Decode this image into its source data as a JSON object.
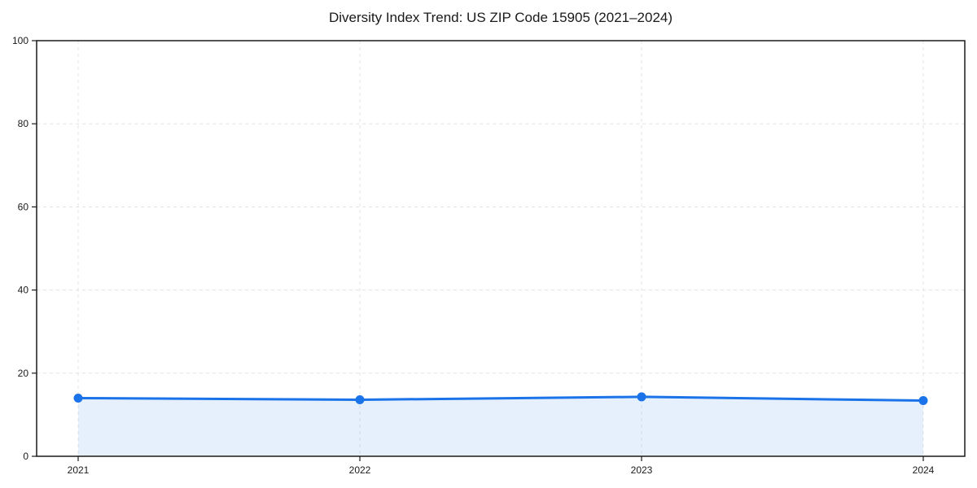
{
  "chart_data": {
    "type": "area",
    "title": "Diversity Index Trend: US ZIP Code 15905 (2021–2024)",
    "categories": [
      "2021",
      "2022",
      "2023",
      "2024"
    ],
    "values": [
      14.0,
      13.6,
      14.3,
      13.4
    ],
    "xlabel": "",
    "ylabel": "",
    "ylim": [
      0,
      100
    ],
    "yticks": [
      0,
      20,
      40,
      60,
      80,
      100
    ],
    "grid": "dashed-both-axes",
    "legend": "none",
    "colors": {
      "line": "#1a73e8",
      "marker": "#1a73e8",
      "fill_opacity": 0.11,
      "grid": "#e3e3e3",
      "axis": "#1a1a1a",
      "text": "#1a1a1a",
      "background": "#ffffff"
    }
  }
}
